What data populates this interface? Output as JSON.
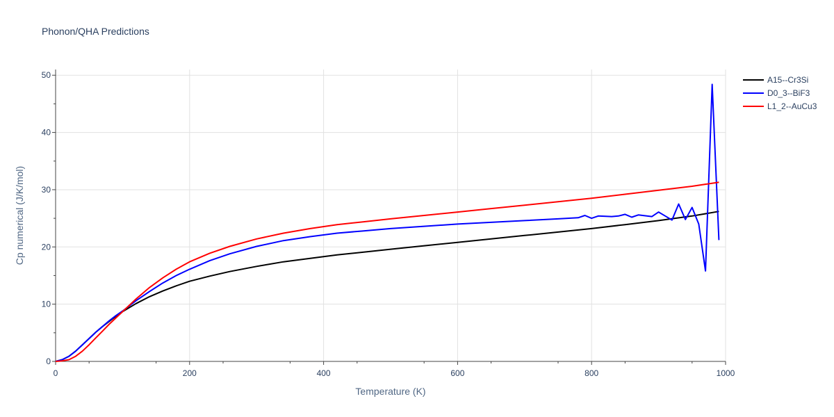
{
  "chart_data": {
    "type": "line",
    "title": "Phonon/QHA Predictions",
    "xlabel": "Temperature (K)",
    "ylabel": "Cp numerical (J/K/mol)",
    "xlim": [
      0,
      1000
    ],
    "ylim": [
      0,
      51
    ],
    "x_ticks": [
      0,
      200,
      400,
      600,
      800,
      1000
    ],
    "y_ticks": [
      0,
      10,
      20,
      30,
      40,
      50
    ],
    "grid": true,
    "legend_position": "top-right",
    "series": [
      {
        "name": "A15--Cr3Si",
        "color": "#000000",
        "x": [
          0,
          10,
          20,
          30,
          40,
          50,
          60,
          70,
          80,
          90,
          100,
          120,
          140,
          160,
          180,
          200,
          230,
          260,
          300,
          340,
          380,
          420,
          460,
          500,
          550,
          600,
          650,
          700,
          750,
          800,
          850,
          900,
          950,
          990
        ],
        "y": [
          0,
          0.3,
          0.9,
          1.8,
          2.9,
          4.0,
          5.1,
          6.1,
          7.0,
          7.9,
          8.7,
          10.1,
          11.3,
          12.3,
          13.2,
          14.0,
          14.9,
          15.7,
          16.6,
          17.4,
          18.0,
          18.6,
          19.1,
          19.6,
          20.2,
          20.8,
          21.4,
          22.0,
          22.6,
          23.2,
          23.9,
          24.6,
          25.4,
          26.2
        ]
      },
      {
        "name": "D0_3--BiF3",
        "color": "#0000ff",
        "x": [
          0,
          10,
          20,
          30,
          40,
          50,
          60,
          70,
          80,
          90,
          100,
          120,
          140,
          160,
          180,
          200,
          230,
          260,
          300,
          340,
          380,
          420,
          460,
          500,
          550,
          600,
          650,
          700,
          750,
          780,
          790,
          800,
          810,
          830,
          840,
          850,
          860,
          870,
          890,
          900,
          910,
          920,
          930,
          940,
          950,
          960,
          970,
          980,
          990
        ],
        "y": [
          0,
          0.3,
          0.9,
          1.8,
          2.9,
          4.0,
          5.1,
          6.1,
          7.1,
          8.0,
          8.8,
          10.6,
          12.2,
          13.7,
          15.0,
          16.1,
          17.6,
          18.8,
          20.1,
          21.1,
          21.8,
          22.4,
          22.8,
          23.2,
          23.6,
          24.0,
          24.3,
          24.6,
          24.9,
          25.1,
          25.5,
          25.0,
          25.4,
          25.3,
          25.4,
          25.7,
          25.2,
          25.6,
          25.3,
          26.1,
          25.4,
          24.7,
          27.5,
          24.8,
          26.9,
          24.0,
          15.8,
          48.4,
          21.2
        ]
      },
      {
        "name": "L1_2--AuCu3",
        "color": "#ff0000",
        "x": [
          0,
          10,
          20,
          30,
          40,
          50,
          60,
          70,
          80,
          90,
          100,
          120,
          140,
          160,
          180,
          200,
          230,
          260,
          300,
          340,
          380,
          420,
          460,
          500,
          550,
          600,
          650,
          700,
          750,
          800,
          850,
          900,
          950,
          990
        ],
        "y": [
          0,
          0.1,
          0.3,
          0.9,
          1.8,
          2.9,
          4.1,
          5.3,
          6.5,
          7.6,
          8.7,
          10.9,
          12.9,
          14.6,
          16.1,
          17.4,
          18.9,
          20.1,
          21.4,
          22.4,
          23.2,
          23.9,
          24.4,
          24.9,
          25.5,
          26.1,
          26.7,
          27.3,
          27.9,
          28.5,
          29.2,
          29.9,
          30.6,
          31.3
        ]
      }
    ]
  }
}
